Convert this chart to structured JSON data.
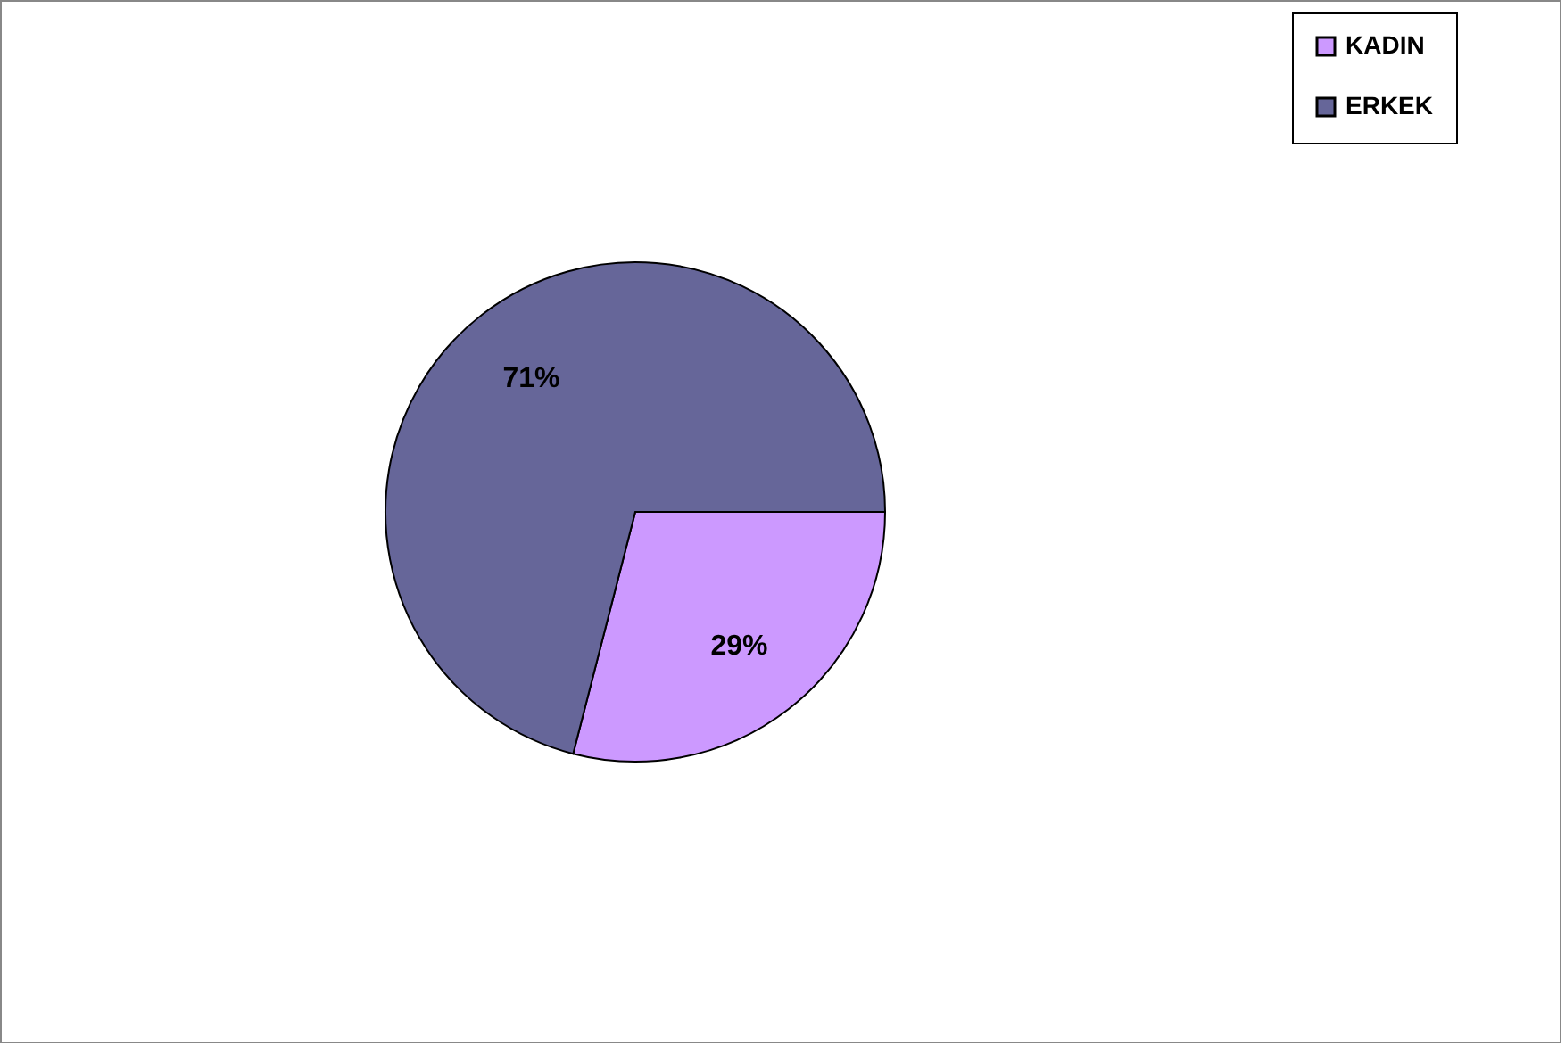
{
  "chart_data": {
    "type": "pie",
    "categories": [
      "KADIN",
      "ERKEK"
    ],
    "values": [
      29,
      71
    ],
    "colors": [
      "#cc99ff",
      "#666699"
    ],
    "value_labels": [
      "29%",
      "71%"
    ],
    "legend": "right"
  }
}
